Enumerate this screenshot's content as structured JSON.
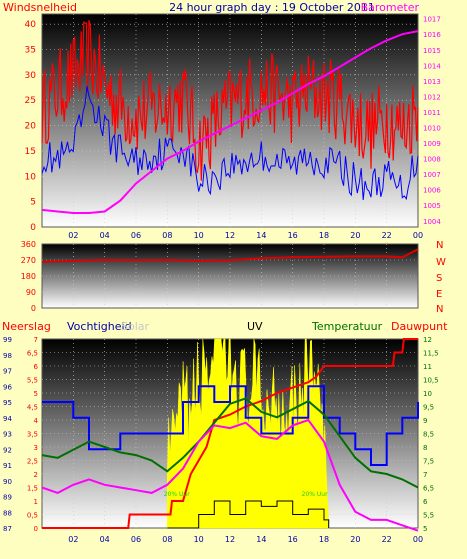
{
  "header": {
    "title": "24 hour graph day : 19 October 2011",
    "left_label": "Windsnelheid",
    "right_label": "Barometer"
  },
  "colors": {
    "background": "#fefec0",
    "wind": "#ff0000",
    "wind_avg": "#0000ff",
    "barometer": "#ff00ff",
    "direction": "#dd0000",
    "rain": "#ff0000",
    "humidity": "#0000ff",
    "temperature": "#007000",
    "dewpoint": "#ff00ff",
    "uv": "#ffff00",
    "solar": "#000000"
  },
  "chart_data": [
    {
      "type": "line",
      "name": "wind-barometer",
      "x_tick_labels": [
        "02",
        "04",
        "06",
        "08",
        "10",
        "12",
        "14",
        "16",
        "18",
        "20",
        "22",
        "00"
      ],
      "left_axis": {
        "label": "Windsnelheid",
        "ticks": [
          "0",
          "5",
          "10",
          "15",
          "20",
          "25",
          "30",
          "35",
          "40"
        ],
        "ylim": [
          0,
          42
        ]
      },
      "right_axis": {
        "label": "Barometer",
        "ticks": [
          "1004",
          "1005",
          "1006",
          "1007",
          "1008",
          "1009",
          "1010",
          "1011",
          "1012",
          "1013",
          "1014",
          "1015",
          "1016",
          "1017"
        ],
        "ylim": [
          1003.6,
          1017.3
        ]
      },
      "grid": true,
      "series": [
        {
          "key": "gust",
          "hours": [
            0,
            1,
            2,
            3,
            4,
            5,
            6,
            7,
            8,
            9,
            10,
            11,
            12,
            13,
            14,
            15,
            16,
            17,
            18,
            19,
            20,
            21,
            22,
            23,
            24
          ],
          "values": [
            23,
            27,
            30,
            34,
            28,
            24,
            22,
            23,
            24,
            26,
            16,
            20,
            24,
            26,
            27,
            26,
            24,
            27,
            26,
            25,
            21,
            19,
            22,
            19,
            24
          ]
        },
        {
          "key": "avg",
          "hours": [
            0,
            1,
            2,
            3,
            4,
            5,
            6,
            7,
            8,
            9,
            10,
            11,
            12,
            13,
            14,
            15,
            16,
            17,
            18,
            19,
            20,
            21,
            22,
            23,
            24
          ],
          "values": [
            14,
            13,
            15,
            26,
            19,
            15,
            13,
            14,
            15,
            16,
            9,
            10,
            12,
            13,
            14,
            13,
            12,
            14,
            13,
            12,
            9,
            8,
            10,
            7,
            14
          ]
        },
        {
          "key": "barometer",
          "hours": [
            0,
            1,
            2,
            3,
            4,
            5,
            6,
            7,
            8,
            9,
            10,
            11,
            12,
            13,
            14,
            15,
            16,
            17,
            18,
            19,
            20,
            21,
            22,
            23,
            24
          ],
          "values": [
            1004.7,
            1004.6,
            1004.5,
            1004.5,
            1004.6,
            1005.3,
            1006.4,
            1007.2,
            1008.0,
            1008.5,
            1009.1,
            1009.6,
            1010.1,
            1010.6,
            1011.1,
            1011.6,
            1012.2,
            1012.8,
            1013.3,
            1013.9,
            1014.5,
            1015.1,
            1015.6,
            1016.0,
            1016.2
          ]
        }
      ]
    },
    {
      "type": "line",
      "name": "wind-direction",
      "right_letters": [
        "N",
        "W",
        "S",
        "E",
        "N"
      ],
      "left_axis": {
        "ticks": [
          "0",
          "90",
          "180",
          "270",
          "360"
        ],
        "ylim": [
          0,
          360
        ]
      },
      "series": [
        {
          "key": "direction",
          "hours": [
            0,
            2,
            4,
            6,
            8,
            10,
            12,
            14,
            16,
            18,
            20,
            22,
            23,
            24
          ],
          "values": [
            260,
            265,
            270,
            268,
            270,
            265,
            268,
            280,
            285,
            288,
            290,
            290,
            285,
            330
          ]
        }
      ]
    },
    {
      "type": "line",
      "name": "rain-humidity-temperature",
      "labels": {
        "rain": "Neerslag",
        "humidity": "Vochtigheid",
        "solar": "Solar",
        "uv": "UV",
        "temperature": "Temperatuur",
        "dewpoint": "Dauwpunt"
      },
      "rain_ticks": [
        "0",
        "0,5",
        "1",
        "1,5",
        "2",
        "2,5",
        "3",
        "3,5",
        "4",
        "4,5",
        "5",
        "5,5",
        "6",
        "6,5",
        "7"
      ],
      "humidity_ticks": [
        "87",
        "88",
        "89",
        "90",
        "91",
        "92",
        "93",
        "94",
        "95",
        "96",
        "97",
        "98",
        "99"
      ],
      "temperature_ticks": [
        "5",
        "5,5",
        "6",
        "6,5",
        "7",
        "7,5",
        "8",
        "8,5",
        "9",
        "9,5",
        "10",
        "10,5",
        "11",
        "11,5",
        "12"
      ],
      "series": [
        {
          "key": "rain",
          "hours": [
            0,
            5.5,
            5.6,
            8.2,
            8.3,
            9,
            9.5,
            10.5,
            11,
            12,
            13,
            14,
            15,
            16,
            17,
            17.5,
            18,
            19,
            20,
            21,
            22,
            22.4,
            22.5,
            23,
            23.1,
            24
          ],
          "values": [
            0,
            0,
            0.5,
            0.5,
            1,
            1,
            2,
            3,
            4,
            4.2,
            4.5,
            4.7,
            5,
            5.2,
            5.4,
            5.6,
            6,
            6,
            6,
            6,
            6,
            6,
            6.5,
            6.5,
            7,
            7
          ]
        },
        {
          "key": "humidity",
          "hours": [
            0,
            1,
            2,
            3,
            4,
            5,
            6,
            7,
            8,
            9,
            10,
            11,
            12,
            13,
            14,
            15,
            16,
            17,
            18,
            19,
            20,
            21,
            22,
            23,
            24
          ],
          "values": [
            95,
            95,
            94,
            92,
            92,
            93,
            93,
            93,
            93,
            95,
            96,
            95,
            96,
            94,
            93,
            93,
            94,
            96,
            94,
            93,
            92,
            91,
            93,
            94,
            95
          ]
        },
        {
          "key": "temperature",
          "hours": [
            0,
            1,
            2,
            3,
            4,
            5,
            6,
            7,
            8,
            9,
            10,
            11,
            12,
            13,
            14,
            15,
            16,
            17,
            18,
            19,
            20,
            21,
            22,
            23,
            24
          ],
          "values": [
            7.7,
            7.6,
            7.9,
            8.2,
            8.0,
            7.8,
            7.7,
            7.5,
            7.1,
            7.6,
            8.2,
            8.9,
            9.6,
            9.8,
            9.3,
            9.1,
            9.4,
            9.7,
            9.2,
            8.4,
            7.6,
            7.1,
            7.0,
            6.8,
            6.5
          ]
        },
        {
          "key": "dewpoint",
          "hours": [
            0,
            1,
            2,
            3,
            4,
            5,
            6,
            7,
            8,
            9,
            10,
            11,
            12,
            13,
            14,
            15,
            16,
            17,
            18,
            19,
            20,
            21,
            22,
            23,
            24
          ],
          "values": [
            6.5,
            6.3,
            6.6,
            6.8,
            6.6,
            6.5,
            6.4,
            6.3,
            6.6,
            7.2,
            8.2,
            8.8,
            8.7,
            8.9,
            8.4,
            8.3,
            8.8,
            9.0,
            8.2,
            6.6,
            5.6,
            5.3,
            5.3,
            5.1,
            4.9
          ]
        },
        {
          "key": "uv",
          "hours": [
            8,
            8.5,
            9,
            9.5,
            10,
            10.5,
            11,
            11.5,
            12,
            12.5,
            13,
            13.5,
            14,
            14.5,
            15,
            15.5,
            16,
            16.5,
            17,
            17.5,
            18,
            18.3
          ],
          "values": [
            3.5,
            4.0,
            5.5,
            5.0,
            6.5,
            7.0,
            8.0,
            7.5,
            7.0,
            6.5,
            6.0,
            6.5,
            5.5,
            5.5,
            6.0,
            5.0,
            6.5,
            5.5,
            8.5,
            6.0,
            4.0,
            0
          ]
        },
        {
          "key": "solar",
          "hours": [
            8,
            9,
            10,
            11,
            12,
            13,
            14,
            15,
            16,
            17,
            18,
            18.3
          ],
          "values": [
            0,
            0,
            0.5,
            1.0,
            0.5,
            1.0,
            0.8,
            1.0,
            0.5,
            0.7,
            0.3,
            0
          ]
        }
      ],
      "annotations": [
        {
          "hour": 8.6,
          "text": "20% Uur"
        },
        {
          "hour": 17.4,
          "text": "20% Uur"
        }
      ]
    }
  ]
}
